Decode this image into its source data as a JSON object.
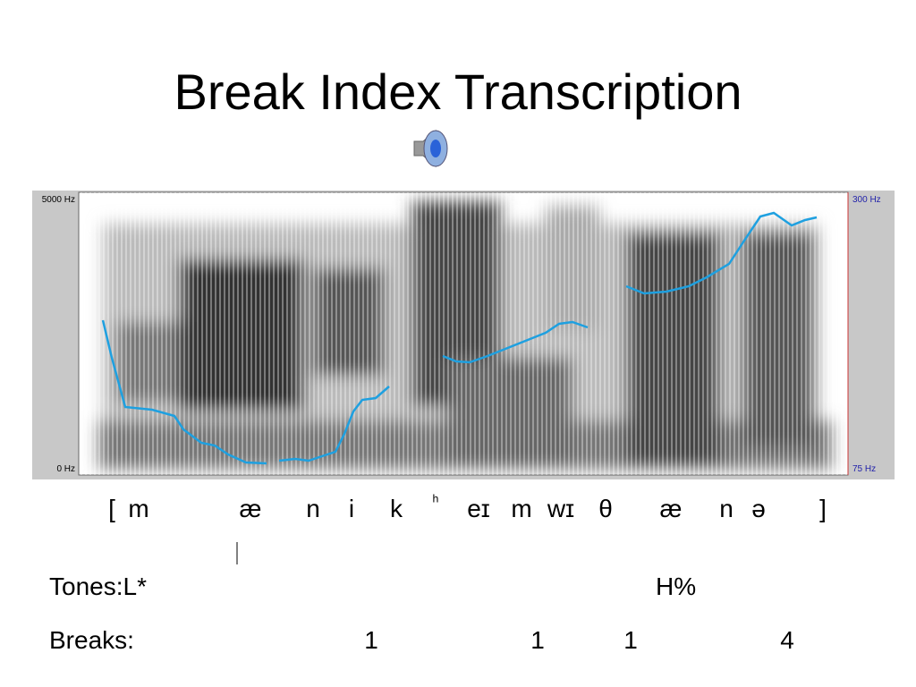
{
  "header": {
    "title": "Break Index Transcription"
  },
  "spectrogram": {
    "left_top": "5000 Hz",
    "left_bottom": "0 Hz",
    "right_top": "300 Hz",
    "right_bottom": "75 Hz"
  },
  "transcription": [
    "[",
    "m",
    "æ",
    "n",
    "i",
    "k",
    "ʰ",
    "eɪ",
    "m",
    "wɪ",
    "θ",
    "æ",
    "n",
    "ə",
    "]"
  ],
  "tones": {
    "label": "Tones:L*",
    "items": [
      "H%"
    ]
  },
  "breaks": {
    "label": "Breaks:",
    "items": [
      "1",
      "1",
      "1",
      "4"
    ]
  }
}
